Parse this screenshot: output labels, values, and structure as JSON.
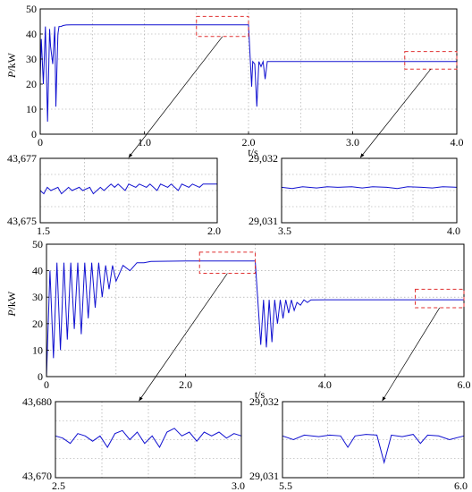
{
  "colors": {
    "series": "#1010d0",
    "zoom_box": "#e03030",
    "grid": "#9a9a9a"
  },
  "chart_data": [
    {
      "id": "main1",
      "type": "line",
      "grid": true,
      "xlabel": "t/s",
      "ylabel_var": "P",
      "ylabel_unit": "/kW",
      "xlim": [
        0,
        4.0
      ],
      "ylim": [
        0,
        50
      ],
      "xticks": [
        0,
        1.0,
        2.0,
        3.0,
        4.0
      ],
      "xtick_labels": [
        "0",
        "1.0",
        "2.0",
        "3.0",
        "4.0"
      ],
      "yticks": [
        0,
        10,
        20,
        30,
        40,
        50
      ],
      "ytick_labels": [
        "0",
        "10",
        "20",
        "30",
        "40",
        "50"
      ],
      "series": [
        {
          "x": [
            0,
            0.01,
            0.03,
            0.05,
            0.07,
            0.09,
            0.1,
            0.12,
            0.14,
            0.15,
            0.17,
            0.18,
            0.2,
            0.22,
            0.25,
            0.3,
            0.5,
            1.0,
            1.5,
            2.0,
            2.03,
            2.04,
            2.06,
            2.08,
            2.1,
            2.12,
            2.14,
            2.16,
            2.18,
            2.2,
            2.22,
            2.25,
            2.3,
            2.5,
            3.0,
            3.5,
            4.0
          ],
          "y": [
            22,
            38,
            20,
            43,
            5,
            42,
            35,
            28,
            43,
            11,
            40,
            43,
            43,
            43.4,
            43.6,
            43.65,
            43.67,
            43.67,
            43.67,
            43.67,
            19,
            29,
            28,
            11,
            29,
            27,
            29,
            22,
            29,
            29,
            29,
            29,
            29.03,
            29.03,
            29.03,
            29.03,
            29.03
          ]
        }
      ],
      "zoom_regions": [
        {
          "x": [
            1.5,
            2.0
          ],
          "y": [
            39,
            47
          ]
        },
        {
          "x": [
            3.5,
            4.0
          ],
          "y": [
            26,
            33
          ]
        }
      ]
    },
    {
      "id": "zoom1a",
      "type": "line",
      "grid": true,
      "xlim": [
        1.5,
        2.0
      ],
      "ylim": [
        43.675,
        43.677
      ],
      "xticks": [
        1.5,
        2.0
      ],
      "xtick_labels": [
        "1.5",
        "2.0"
      ],
      "yticks": [
        43.675,
        43.677
      ],
      "ytick_labels": [
        "43,675",
        "43,677"
      ],
      "series": [
        {
          "x": [
            1.5,
            1.51,
            1.52,
            1.53,
            1.55,
            1.56,
            1.58,
            1.59,
            1.61,
            1.62,
            1.64,
            1.65,
            1.67,
            1.68,
            1.7,
            1.71,
            1.72,
            1.74,
            1.75,
            1.77,
            1.78,
            1.8,
            1.81,
            1.83,
            1.84,
            1.86,
            1.87,
            1.89,
            1.9,
            1.92,
            1.93,
            1.95,
            1.96,
            1.98,
            2.0
          ],
          "y": [
            43.676,
            43.6759,
            43.6761,
            43.676,
            43.6761,
            43.6759,
            43.6761,
            43.676,
            43.6761,
            43.676,
            43.6761,
            43.6759,
            43.6761,
            43.676,
            43.6762,
            43.6761,
            43.6762,
            43.676,
            43.6762,
            43.6761,
            43.6762,
            43.6761,
            43.6762,
            43.676,
            43.6762,
            43.6761,
            43.6762,
            43.676,
            43.6762,
            43.6761,
            43.6762,
            43.6761,
            43.6762,
            43.6762,
            43.6762
          ]
        }
      ]
    },
    {
      "id": "zoom1b",
      "type": "line",
      "grid": true,
      "xlim": [
        3.5,
        4.0
      ],
      "ylim": [
        29.031,
        29.032
      ],
      "xticks": [
        3.5,
        4.0
      ],
      "xtick_labels": [
        "3.5",
        "4.0"
      ],
      "yticks": [
        29.031,
        29.032
      ],
      "ytick_labels": [
        "29,031",
        "29,032"
      ],
      "series": [
        {
          "x": [
            3.5,
            3.53,
            3.56,
            3.6,
            3.63,
            3.66,
            3.7,
            3.73,
            3.76,
            3.8,
            3.83,
            3.86,
            3.9,
            3.93,
            3.96,
            4.0
          ],
          "y": [
            29.03155,
            29.03153,
            29.03156,
            29.03154,
            29.03156,
            29.03155,
            29.03156,
            29.03154,
            29.03156,
            29.03155,
            29.03153,
            29.03156,
            29.03155,
            29.03154,
            29.03156,
            29.03155
          ]
        }
      ]
    },
    {
      "id": "main2",
      "type": "line",
      "grid": true,
      "xlabel": "t/s",
      "ylabel_var": "P",
      "ylabel_unit": "/kW",
      "xlim": [
        0,
        6.0
      ],
      "ylim": [
        0,
        50
      ],
      "xticks": [
        0,
        2.0,
        4.0,
        6.0
      ],
      "xtick_labels": [
        "0",
        "2.0",
        "4.0",
        "6.0"
      ],
      "yticks": [
        0,
        10,
        20,
        30,
        40,
        50
      ],
      "ytick_labels": [
        "0",
        "10",
        "20",
        "30",
        "40",
        "50"
      ],
      "series": [
        {
          "x": [
            0,
            0.05,
            0.1,
            0.15,
            0.2,
            0.25,
            0.3,
            0.35,
            0.4,
            0.45,
            0.5,
            0.55,
            0.6,
            0.65,
            0.7,
            0.75,
            0.8,
            0.85,
            0.9,
            0.95,
            1.0,
            1.1,
            1.2,
            1.3,
            1.4,
            1.5,
            2.0,
            2.5,
            3.0,
            3.08,
            3.12,
            3.16,
            3.2,
            3.24,
            3.28,
            3.32,
            3.36,
            3.4,
            3.44,
            3.48,
            3.52,
            3.56,
            3.6,
            3.65,
            3.7,
            3.75,
            3.8,
            4.0,
            5.0,
            6.0
          ],
          "y": [
            0,
            40,
            7,
            43,
            10,
            43,
            14,
            43,
            18,
            43,
            16,
            43,
            22,
            43,
            26,
            43,
            30,
            42,
            33,
            42,
            36,
            42,
            40,
            43,
            43,
            43.5,
            43.67,
            43.675,
            43.675,
            12,
            29,
            11,
            29,
            13,
            29,
            20,
            29,
            22,
            29,
            24,
            29,
            25,
            28,
            27,
            29,
            28,
            29,
            29.03,
            29.03,
            29.03
          ]
        }
      ],
      "zoom_regions": [
        {
          "x": [
            2.2,
            3.0
          ],
          "y": [
            39,
            47
          ]
        },
        {
          "x": [
            5.3,
            6.0
          ],
          "y": [
            26,
            33
          ]
        }
      ]
    },
    {
      "id": "zoom2a",
      "type": "line",
      "grid": true,
      "xlim": [
        2.5,
        3.0
      ],
      "ylim": [
        43.67,
        43.68
      ],
      "xticks": [
        2.5,
        3.0
      ],
      "xtick_labels": [
        "2.5",
        "3.0"
      ],
      "yticks": [
        43.67,
        43.68
      ],
      "ytick_labels": [
        "43,670",
        "43,680"
      ],
      "series": [
        {
          "x": [
            2.5,
            2.52,
            2.54,
            2.56,
            2.58,
            2.6,
            2.62,
            2.64,
            2.66,
            2.68,
            2.7,
            2.72,
            2.74,
            2.76,
            2.78,
            2.8,
            2.82,
            2.84,
            2.86,
            2.88,
            2.9,
            2.92,
            2.94,
            2.96,
            2.98,
            3.0
          ],
          "y": [
            43.6755,
            43.6752,
            43.6745,
            43.6758,
            43.6755,
            43.6748,
            43.6755,
            43.674,
            43.6758,
            43.6762,
            43.675,
            43.676,
            43.6745,
            43.6755,
            43.674,
            43.676,
            43.6765,
            43.6755,
            43.676,
            43.6748,
            43.676,
            43.6755,
            43.676,
            43.6752,
            43.6758,
            43.6755
          ]
        }
      ]
    },
    {
      "id": "zoom2b",
      "type": "line",
      "grid": true,
      "xlim": [
        5.5,
        6.0
      ],
      "ylim": [
        29.031,
        29.032
      ],
      "xticks": [
        5.5,
        6.0
      ],
      "xtick_labels": [
        "5.5",
        "6.0"
      ],
      "yticks": [
        29.031,
        29.032
      ],
      "ytick_labels": [
        "29,031",
        "29,032"
      ],
      "series": [
        {
          "x": [
            5.5,
            5.53,
            5.56,
            5.6,
            5.63,
            5.66,
            5.68,
            5.7,
            5.73,
            5.76,
            5.78,
            5.8,
            5.83,
            5.86,
            5.88,
            5.9,
            5.93,
            5.96,
            6.0
          ],
          "y": [
            29.03155,
            29.0315,
            29.03156,
            29.03154,
            29.03156,
            29.03155,
            29.0314,
            29.03155,
            29.03157,
            29.03156,
            29.0312,
            29.03156,
            29.03154,
            29.03157,
            29.03145,
            29.03156,
            29.03155,
            29.0315,
            29.03155
          ]
        }
      ]
    }
  ]
}
